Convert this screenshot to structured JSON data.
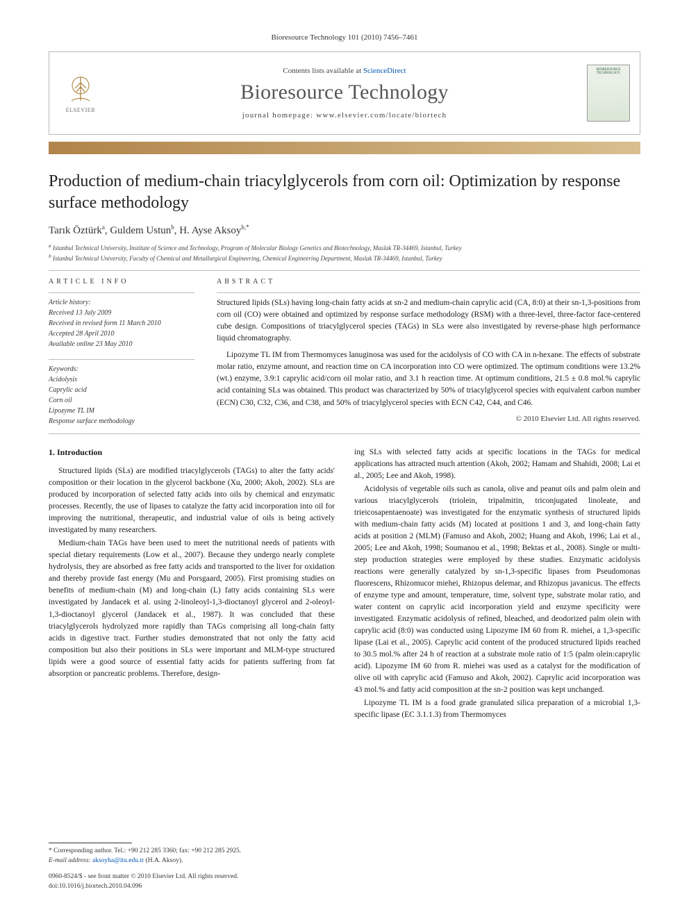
{
  "header": {
    "citation": "Bioresource Technology 101 (2010) 7456–7461",
    "contents_prefix": "Contents lists available at ",
    "contents_link": "ScienceDirect",
    "journal_name": "Bioresource Technology",
    "homepage_prefix": "journal homepage: ",
    "homepage_url": "www.elsevier.com/locate/biortech",
    "publisher_mark": "ELSEVIER",
    "cover_label_top": "BIORESOURCE",
    "cover_label_bottom": "TECHNOLOGY"
  },
  "title": "Production of medium-chain triacylglycerols from corn oil: Optimization by response surface methodology",
  "authors_html": "Tarık Öztürk<sup>a</sup>, Guldem Ustun<sup>b</sup>, H. Ayse Aksoy<sup>b,*</sup>",
  "affiliations": [
    "a Istanbul Technical University, Institute of Science and Technology, Program of Molecular Biology Genetics and Biotechnology, Maslak TR-34469, Istanbul, Turkey",
    "b Istanbul Technical University, Faculty of Chemical and Metallurgical Engineering, Chemical Engineering Department, Maslak TR-34469, Istanbul, Turkey"
  ],
  "info": {
    "head": "ARTICLE INFO",
    "history_head": "Article history:",
    "history": [
      "Received 13 July 2009",
      "Received in revised form 11 March 2010",
      "Accepted 28 April 2010",
      "Available online 23 May 2010"
    ],
    "keywords_head": "Keywords:",
    "keywords": [
      "Acidolysis",
      "Caprylic acid",
      "Corn oil",
      "Lipozyme TL IM",
      "Response surface methodology"
    ]
  },
  "abstract": {
    "head": "ABSTRACT",
    "p1": "Structured lipids (SLs) having long-chain fatty acids at sn-2 and medium-chain caprylic acid (CA, 8:0) at their sn-1,3-positions from corn oil (CO) were obtained and optimized by response surface methodology (RSM) with a three-level, three-factor face-centered cube design. Compositions of triacylglycerol species (TAGs) in SLs were also investigated by reverse-phase high performance liquid chromatography.",
    "p2": "Lipozyme TL IM from Thermomyces lanuginosa was used for the acidolysis of CO with CA in n-hexane. The effects of substrate molar ratio, enzyme amount, and reaction time on CA incorporation into CO were optimized. The optimum conditions were 13.2% (wt.) enzyme, 3.9:1 caprylic acid/corn oil molar ratio, and 3.1 h reaction time. At optimum conditions, 21.5 ± 0.8 mol.% caprylic acid containing SLs was obtained. This product was characterized by 50% of triacylglycerol species with equivalent carbon number (ECN) C30, C32, C36, and C38, and 50% of triacylglycerol species with ECN C42, C44, and C46.",
    "copyright": "© 2010 Elsevier Ltd. All rights reserved."
  },
  "body": {
    "intro_head": "1. Introduction",
    "left_p1": "Structured lipids (SLs) are modified triacylglycerols (TAGs) to alter the fatty acids' composition or their location in the glycerol backbone (Xu, 2000; Akoh, 2002). SLs are produced by incorporation of selected fatty acids into oils by chemical and enzymatic processes. Recently, the use of lipases to catalyze the fatty acid incorporation into oil for improving the nutritional, therapeutic, and industrial value of oils is being actively investigated by many researchers.",
    "left_p2": "Medium-chain TAGs have been used to meet the nutritional needs of patients with special dietary requirements (Low et al., 2007). Because they undergo nearly complete hydrolysis, they are absorbed as free fatty acids and transported to the liver for oxidation and thereby provide fast energy (Mu and Porsgaard, 2005). First promising studies on benefits of medium-chain (M) and long-chain (L) fatty acids containing SLs were investigated by Jandacek et al. using 2-linoleoyl-1,3-dioctanoyl glycerol and 2-oleoyl-1,3-dioctanoyl glycerol (Jandacek et al., 1987). It was concluded that these triacylglycerols hydrolyzed more rapidly than TAGs comprising all long-chain fatty acids in digestive tract. Further studies demonstrated that not only the fatty acid composition but also their positions in SLs were important and MLM-type structured lipids were a good source of essential fatty acids for patients suffering from fat absorption or pancreatic problems. Therefore, design-",
    "right_p1": "ing SLs with selected fatty acids at specific locations in the TAGs for medical applications has attracted much attention (Akoh, 2002; Hamam and Shahidi, 2008; Lai et al., 2005; Lee and Akoh, 1998).",
    "right_p2": "Acidolysis of vegetable oils such as canola, olive and peanut oils and palm olein and various triacylglycerols (triolein, tripalmitin, triconjugated linoleate, and trieicosapentaenoate) was investigated for the enzymatic synthesis of structured lipids with medium-chain fatty acids (M) located at positions 1 and 3, and long-chain fatty acids at position 2 (MLM) (Famuso and Akoh, 2002; Huang and Akoh, 1996; Lai et al., 2005; Lee and Akoh, 1998; Soumanou et al., 1998; Bektas et al., 2008). Single or multi-step production strategies were employed by these studies. Enzymatic acidolysis reactions were generally catalyzed by sn-1,3-specific lipases from Pseudomonas fluorescens, Rhizomucor miehei, Rhizopus delemar, and Rhizopus javanicus. The effects of enzyme type and amount, temperature, time, solvent type, substrate molar ratio, and water content on caprylic acid incorporation yield and enzyme specificity were investigated. Enzymatic acidolysis of refined, bleached, and deodorized palm olein with caprylic acid (8:0) was conducted using Lipozyme IM 60 from R. miehei, a 1,3-specific lipase (Lai et al., 2005). Caprylic acid content of the produced structured lipids reached to 30.5 mol.% after 24 h of reaction at a substrate mole ratio of 1:5 (palm olein:caprylic acid). Lipozyme IM 60 from R. miehei was used as a catalyst for the modification of olive oil with caprylic acid (Famuso and Akoh, 2002). Caprylic acid incorporation was 43 mol.% and fatty acid composition at the sn-2 position was kept unchanged.",
    "right_p3": "Lipozyme TL IM is a food grade granulated silica preparation of a microbial 1,3-specific lipase (EC 3.1.1.3) from Thermomyces"
  },
  "footer": {
    "corr_label": "* Corresponding author. Tel.: +90 212 285 3360; fax: +90 212 285 2925.",
    "email_label": "E-mail address:",
    "email": "aksoyha@itu.edu.tr",
    "email_suffix": "(H.A. Aksoy).",
    "issn_line": "0960-8524/$ - see front matter © 2010 Elsevier Ltd. All rights reserved.",
    "doi_line": "doi:10.1016/j.biortech.2010.04.096"
  },
  "colors": {
    "link": "#0056b3",
    "bar_left": "#b0844a",
    "bar_right": "#d9c08f",
    "rule": "#bcbcbc",
    "text": "#1a1a1a"
  }
}
